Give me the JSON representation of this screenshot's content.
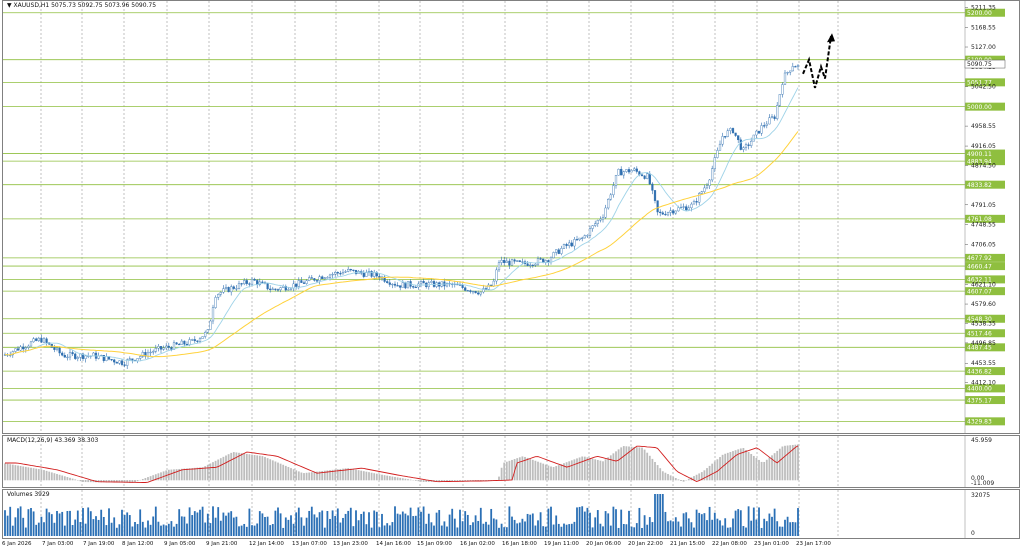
{
  "header": {
    "symbol_info": "▼ XAUUSD,H1  5075.73 5092.75 5073.96 5090.75"
  },
  "price_axis": {
    "ticks": [
      "5211.35",
      "5168.55",
      "5127.00",
      "5084.25",
      "5042.50",
      "4958.55",
      "4916.05",
      "4874.50",
      "4791.05",
      "4748.55",
      "4706.05",
      "4621.10",
      "4579.60",
      "4538.35",
      "4496.85",
      "4453.55",
      "4412.10"
    ],
    "tick_values": [
      5211.35,
      5168.55,
      5127.0,
      5084.25,
      5042.5,
      4958.55,
      4916.05,
      4874.5,
      4791.05,
      4748.55,
      4706.05,
      4621.1,
      4579.6,
      4538.35,
      4496.85,
      4453.55,
      4412.1
    ]
  },
  "levels": {
    "labels": [
      "5200.00",
      "5100.00",
      "5051.77",
      "5000.00",
      "4900.11",
      "4883.94",
      "4833.82",
      "4761.08",
      "4677.92",
      "4660.47",
      "4632.11",
      "4607.07",
      "4548.30",
      "4517.46",
      "4487.45",
      "4436.82",
      "4400.00",
      "4375.17",
      "4329.83"
    ],
    "values": [
      5200.0,
      5100.0,
      5051.77,
      5000.0,
      4900.11,
      4883.94,
      4833.82,
      4761.08,
      4677.92,
      4660.47,
      4632.11,
      4607.07,
      4548.3,
      4517.46,
      4487.45,
      4436.82,
      4400.0,
      4375.17,
      4329.83
    ],
    "line_color": "#8fbf3f",
    "label_bg": "#8fbf3f"
  },
  "current_price_label": "5090.75",
  "macd": {
    "title": "MACD(12,26,9) 43.369 38.303",
    "ticks": [
      "45.959",
      "0.00",
      "-11.009"
    ]
  },
  "volumes": {
    "title": "Volumes 3929",
    "ticks": [
      "32075",
      "0"
    ]
  },
  "time_axis": [
    "6 Jan 2026",
    "7 Jan 03:00",
    "7 Jan 19:00",
    "8 Jan 12:00",
    "9 Jan 05:00",
    "9 Jan 21:00",
    "12 Jan 14:00",
    "13 Jan 07:00",
    "13 Jan 23:00",
    "14 Jan 16:00",
    "15 Jan 09:00",
    "16 Jan 02:00",
    "16 Jan 18:00",
    "19 Jan 11:00",
    "20 Jan 06:00",
    "20 Jan 22:00",
    "21 Jan 15:00",
    "22 Jan 08:00",
    "23 Jan 01:00",
    "23 Jan 17:00"
  ],
  "colors": {
    "bull": "#2f6fb0",
    "bear": "#2f6fb0",
    "ma_fast": "#9fd3e8",
    "ma_slow": "#ffd23c",
    "macd_hist": "#bdbdbd",
    "macd_signal": "#d21e1e",
    "volume": "#2a6fb5"
  }
}
